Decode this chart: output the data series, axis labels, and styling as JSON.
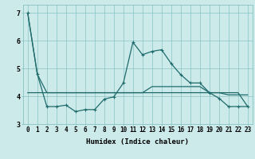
{
  "xlabel": "Humidex (Indice chaleur)",
  "xlim": [
    -0.5,
    23.5
  ],
  "ylim": [
    3.0,
    7.3
  ],
  "bg_color": "#cceaea",
  "line_color": "#1f6b6b",
  "line1_x": [
    0,
    1,
    2,
    3,
    4,
    5,
    6,
    7,
    8,
    9,
    10,
    11,
    12,
    13,
    14,
    15,
    16,
    17,
    18,
    19,
    20,
    21,
    22,
    23
  ],
  "line1_y": [
    7.0,
    4.8,
    4.13,
    4.13,
    4.13,
    4.13,
    4.13,
    4.13,
    4.13,
    4.13,
    4.13,
    4.13,
    4.13,
    4.35,
    4.35,
    4.35,
    4.35,
    4.35,
    4.35,
    4.13,
    4.13,
    4.05,
    4.05,
    4.05
  ],
  "line2_x": [
    0,
    1,
    2,
    3,
    4,
    5,
    6,
    7,
    8,
    9,
    10,
    11,
    12,
    13,
    14,
    15,
    16,
    17,
    18,
    19,
    20,
    21,
    22,
    23
  ],
  "line2_y": [
    7.0,
    4.8,
    3.63,
    3.63,
    3.68,
    3.45,
    3.52,
    3.52,
    3.9,
    3.98,
    4.48,
    5.95,
    5.5,
    5.62,
    5.68,
    5.18,
    4.78,
    4.48,
    4.48,
    4.13,
    3.93,
    3.63,
    3.63,
    3.63
  ],
  "line3_x": [
    0,
    1,
    2,
    3,
    4,
    5,
    6,
    7,
    8,
    9,
    10,
    11,
    12,
    13,
    14,
    15,
    16,
    17,
    18,
    19,
    20,
    21,
    22,
    23
  ],
  "line3_y": [
    4.13,
    4.13,
    4.13,
    4.13,
    4.13,
    4.13,
    4.13,
    4.13,
    4.13,
    4.13,
    4.13,
    4.13,
    4.13,
    4.13,
    4.13,
    4.13,
    4.13,
    4.13,
    4.13,
    4.13,
    4.13,
    4.13,
    4.13,
    3.63
  ],
  "yticks": [
    3,
    4,
    5,
    6,
    7
  ],
  "xticks": [
    0,
    1,
    2,
    3,
    4,
    5,
    6,
    7,
    8,
    9,
    10,
    11,
    12,
    13,
    14,
    15,
    16,
    17,
    18,
    19,
    20,
    21,
    22,
    23
  ],
  "grid_color": "#7bbaba",
  "marker": "+",
  "lw": 0.9,
  "ms": 3.5,
  "tick_fontsize": 5.5,
  "xlabel_fontsize": 6.5
}
